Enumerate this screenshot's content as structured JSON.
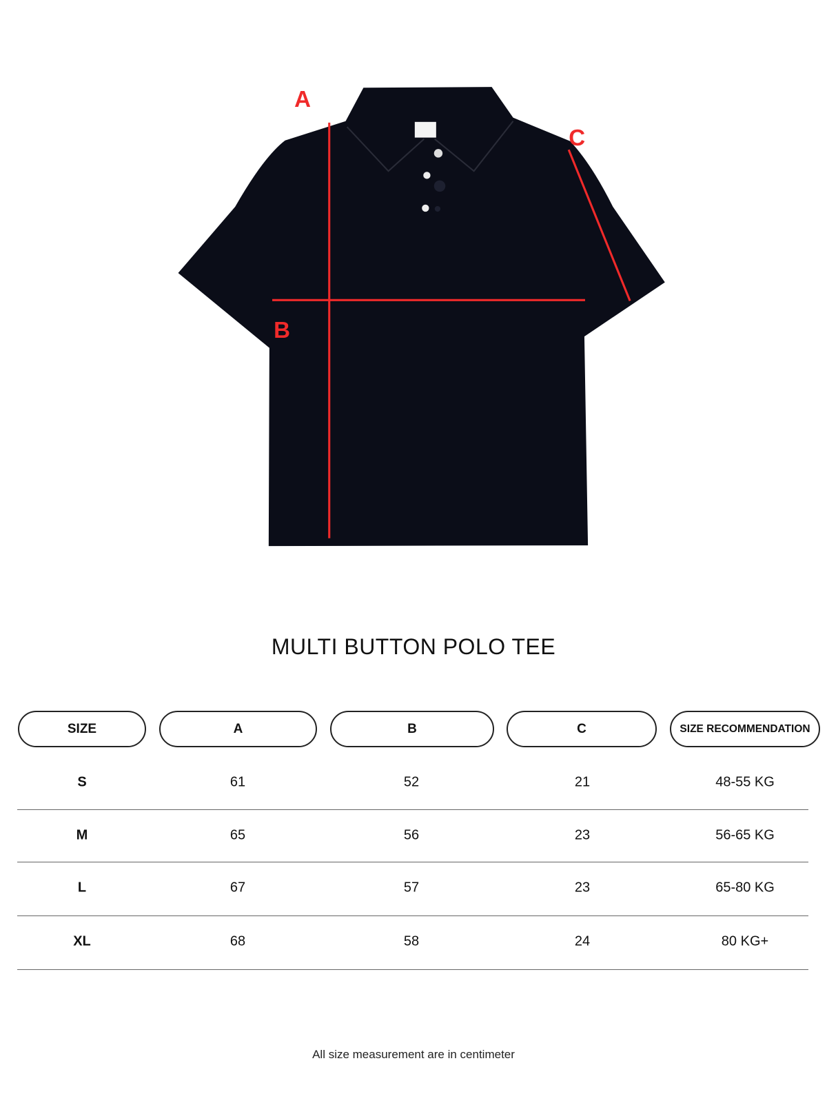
{
  "diagram": {
    "labels": {
      "a": "A",
      "b": "B",
      "c": "C"
    },
    "measure_color": "#f02a2a",
    "garment_color": "#0b0d18"
  },
  "title": "MULTI BUTTON POLO TEE",
  "table": {
    "headers": [
      "SIZE",
      "A",
      "B",
      "C",
      "SIZE RECOMMENDATION"
    ],
    "rows": [
      [
        "S",
        "61",
        "52",
        "21",
        "48-55 KG"
      ],
      [
        "M",
        "65",
        "56",
        "23",
        "56-65 KG"
      ],
      [
        "L",
        "67",
        "57",
        "23",
        "65-80 KG"
      ],
      [
        "XL",
        "68",
        "58",
        "24",
        "80 KG+"
      ]
    ]
  },
  "footer": "All size measurement are in centimeter"
}
